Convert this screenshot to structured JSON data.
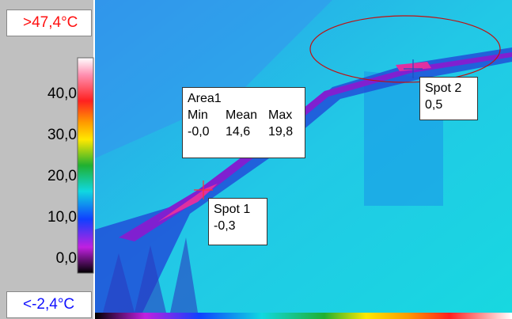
{
  "scale": {
    "max_label": ">47,4°C",
    "min_label": "<-2,4°C",
    "ticks": [
      "40,0",
      "30,0",
      "20,0",
      "10,0",
      "0,0"
    ]
  },
  "area1": {
    "name": "Area1",
    "headers": [
      "Min",
      "Mean",
      "Max"
    ],
    "values": [
      "-0,0",
      "14,6",
      "19,8"
    ]
  },
  "spot1": {
    "name": "Spot 1",
    "value": "-0,3"
  },
  "spot2": {
    "name": "Spot 2",
    "value": "0,5"
  }
}
